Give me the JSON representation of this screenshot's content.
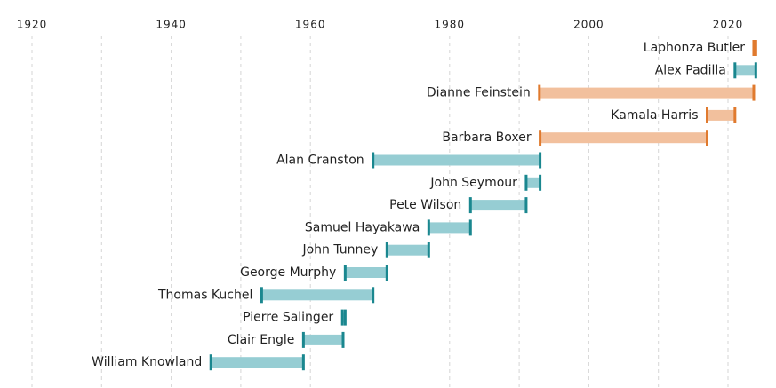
{
  "chart_data": {
    "type": "timeline",
    "categories": [
      "Laphonza Butler",
      "Alex Padilla",
      "Dianne Feinstein",
      "Kamala Harris",
      "Barbara Boxer",
      "Alan Cranston",
      "John Seymour",
      "Pete Wilson",
      "Samuel Hayakawa",
      "John Tunney",
      "George Murphy",
      "Thomas Kuchel",
      "Pierre Salinger",
      "Clair Engle",
      "William Knowland"
    ],
    "start": [
      2023.7,
      2021,
      1992.9,
      2017,
      1993,
      1969,
      1991,
      1983,
      1977,
      1971,
      1965,
      1953,
      1964.6,
      1959,
      1945.7
    ],
    "end": [
      2024,
      2024,
      2023.7,
      2021,
      2017,
      1993,
      1993,
      1991,
      1983,
      1977,
      1971,
      1969,
      1965,
      1964.7,
      1959
    ],
    "colors": [
      "#f2c09d",
      "#96cdd3",
      "#f2c09d",
      "#f2c09d",
      "#f2c09d",
      "#96cdd3",
      "#96cdd3",
      "#96cdd3",
      "#96cdd3",
      "#96cdd3",
      "#96cdd3",
      "#96cdd3",
      "#96cdd3",
      "#96cdd3",
      "#96cdd3"
    ],
    "cap_colors": [
      "#e07a2e",
      "#1a878f",
      "#e07a2e",
      "#e07a2e",
      "#e07a2e",
      "#1a878f",
      "#1a878f",
      "#1a878f",
      "#1a878f",
      "#1a878f",
      "#1a878f",
      "#1a878f",
      "#1a878f",
      "#1a878f",
      "#1a878f"
    ],
    "xlim": [
      1920,
      2020
    ],
    "xticks": [
      1920,
      1940,
      1960,
      1980,
      2000,
      2020
    ],
    "minor_xticks": [
      1930,
      1950,
      1970,
      1990,
      2010
    ],
    "grid": true
  }
}
